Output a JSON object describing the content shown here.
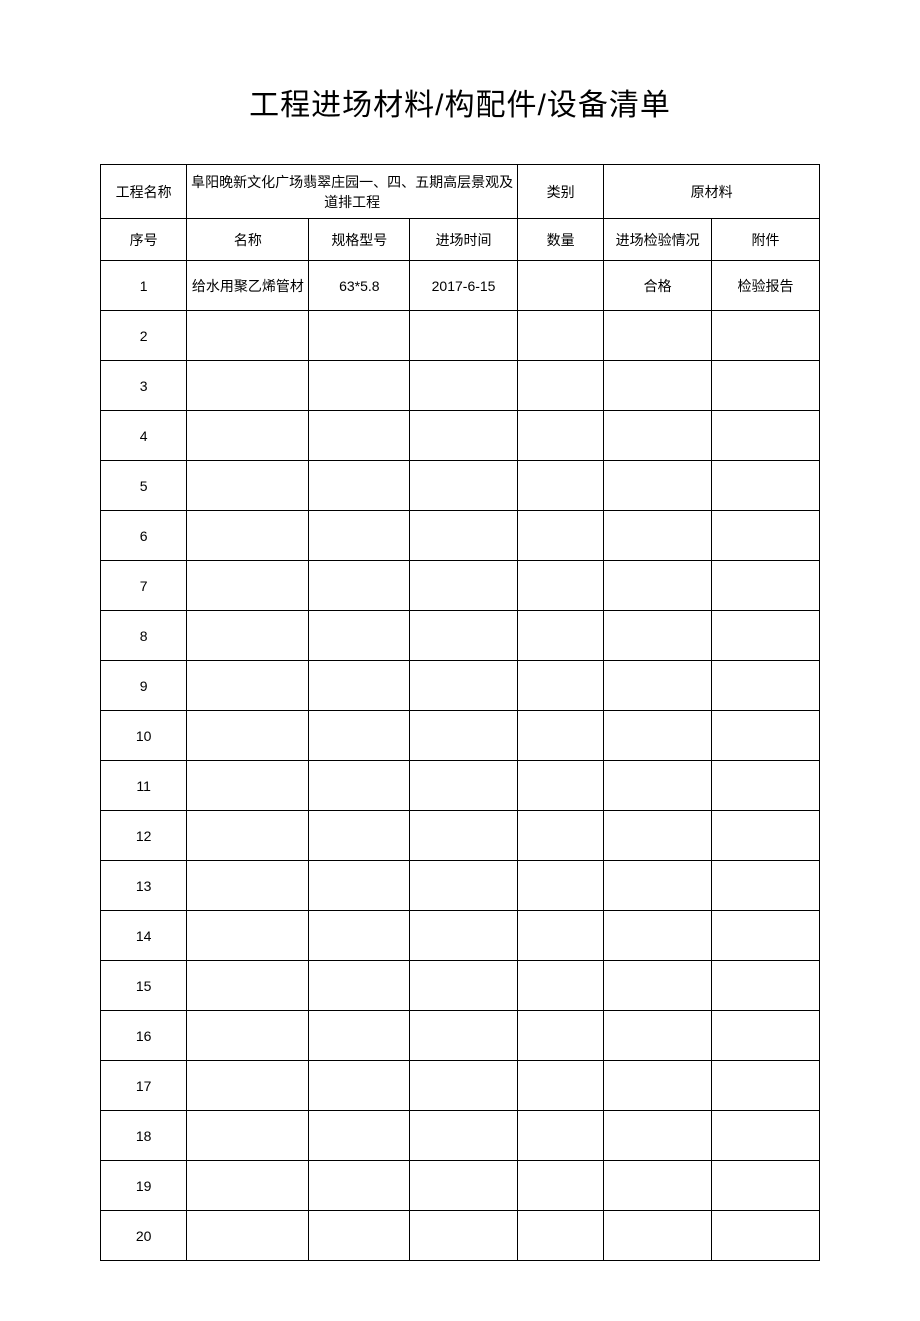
{
  "title": "工程进场材料/构配件/设备清单",
  "header": {
    "project_name_label": "工程名称",
    "project_name_value": "阜阳晚新文化广场翡翠庄园一、四、五期高层景观及道排工程",
    "category_label": "类别",
    "category_value": "原材料"
  },
  "columns": {
    "seq": "序号",
    "name": "名称",
    "spec": "规格型号",
    "entry_time": "进场时间",
    "quantity": "数量",
    "inspection": "进场检验情况",
    "attachment": "附件"
  },
  "rows": [
    {
      "seq": "1",
      "name": "给水用聚乙烯管材",
      "spec": "63*5.8",
      "entry_time": "2017-6-15",
      "quantity": "",
      "inspection": "合格",
      "attachment": "检验报告"
    },
    {
      "seq": "2",
      "name": "",
      "spec": "",
      "entry_time": "",
      "quantity": "",
      "inspection": "",
      "attachment": ""
    },
    {
      "seq": "3",
      "name": "",
      "spec": "",
      "entry_time": "",
      "quantity": "",
      "inspection": "",
      "attachment": ""
    },
    {
      "seq": "4",
      "name": "",
      "spec": "",
      "entry_time": "",
      "quantity": "",
      "inspection": "",
      "attachment": ""
    },
    {
      "seq": "5",
      "name": "",
      "spec": "",
      "entry_time": "",
      "quantity": "",
      "inspection": "",
      "attachment": ""
    },
    {
      "seq": "6",
      "name": "",
      "spec": "",
      "entry_time": "",
      "quantity": "",
      "inspection": "",
      "attachment": ""
    },
    {
      "seq": "7",
      "name": "",
      "spec": "",
      "entry_time": "",
      "quantity": "",
      "inspection": "",
      "attachment": ""
    },
    {
      "seq": "8",
      "name": "",
      "spec": "",
      "entry_time": "",
      "quantity": "",
      "inspection": "",
      "attachment": ""
    },
    {
      "seq": "9",
      "name": "",
      "spec": "",
      "entry_time": "",
      "quantity": "",
      "inspection": "",
      "attachment": ""
    },
    {
      "seq": "10",
      "name": "",
      "spec": "",
      "entry_time": "",
      "quantity": "",
      "inspection": "",
      "attachment": ""
    },
    {
      "seq": "11",
      "name": "",
      "spec": "",
      "entry_time": "",
      "quantity": "",
      "inspection": "",
      "attachment": ""
    },
    {
      "seq": "12",
      "name": "",
      "spec": "",
      "entry_time": "",
      "quantity": "",
      "inspection": "",
      "attachment": ""
    },
    {
      "seq": "13",
      "name": "",
      "spec": "",
      "entry_time": "",
      "quantity": "",
      "inspection": "",
      "attachment": ""
    },
    {
      "seq": "14",
      "name": "",
      "spec": "",
      "entry_time": "",
      "quantity": "",
      "inspection": "",
      "attachment": ""
    },
    {
      "seq": "15",
      "name": "",
      "spec": "",
      "entry_time": "",
      "quantity": "",
      "inspection": "",
      "attachment": ""
    },
    {
      "seq": "16",
      "name": "",
      "spec": "",
      "entry_time": "",
      "quantity": "",
      "inspection": "",
      "attachment": ""
    },
    {
      "seq": "17",
      "name": "",
      "spec": "",
      "entry_time": "",
      "quantity": "",
      "inspection": "",
      "attachment": ""
    },
    {
      "seq": "18",
      "name": "",
      "spec": "",
      "entry_time": "",
      "quantity": "",
      "inspection": "",
      "attachment": ""
    },
    {
      "seq": "19",
      "name": "",
      "spec": "",
      "entry_time": "",
      "quantity": "",
      "inspection": "",
      "attachment": ""
    },
    {
      "seq": "20",
      "name": "",
      "spec": "",
      "entry_time": "",
      "quantity": "",
      "inspection": "",
      "attachment": ""
    }
  ],
  "col_widths": {
    "seq": "12%",
    "name": "17%",
    "spec": "14%",
    "entry_time": "15%",
    "quantity": "12%",
    "inspection": "15%",
    "attachment": "15%"
  }
}
